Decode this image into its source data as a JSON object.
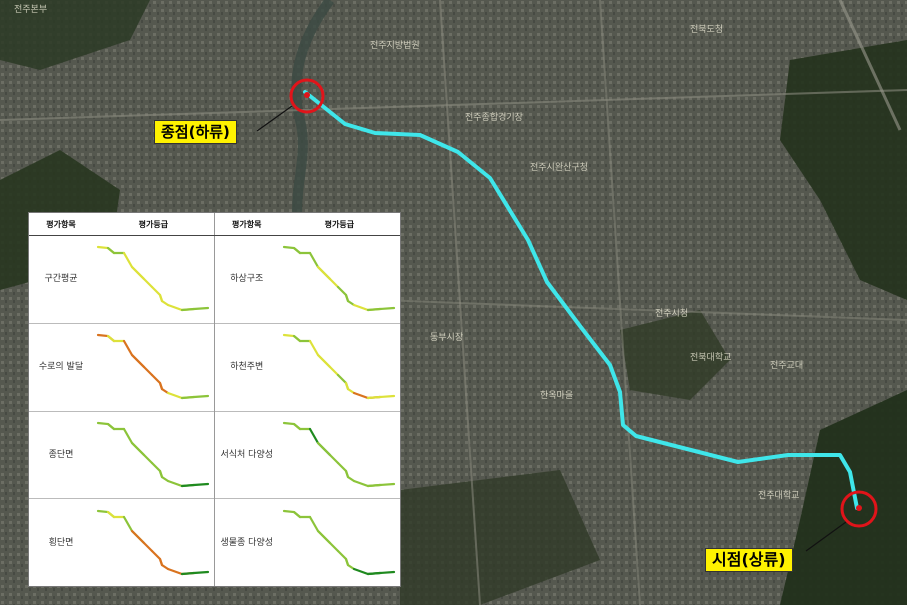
{
  "map": {
    "end_label": "종점(하류)",
    "start_label": "시점(상류)",
    "route_color": "#3fe6ea",
    "marker_color": "#e0141a",
    "places": [
      "전주본부",
      "전주지방법원",
      "전주종합경기장",
      "전주시청",
      "전북대학교",
      "전주교대",
      "전북도청",
      "전주시완산구청",
      "동부시장",
      "전주대학교",
      "한옥마을"
    ]
  },
  "panel": {
    "headers": [
      "평가항목",
      "평가등급",
      "평가항목",
      "평가등급"
    ],
    "rows": [
      {
        "left": {
          "label": "구간평균",
          "segments": [
            "yellow",
            "green",
            "yellow",
            "yellow",
            "yellow",
            "yellow",
            "yellow",
            "green"
          ]
        },
        "right": {
          "label": "하상구조",
          "segments": [
            "green",
            "green",
            "green",
            "yellow",
            "green",
            "green",
            "yellow",
            "green"
          ]
        }
      },
      {
        "left": {
          "label": "수로의 발달",
          "segments": [
            "orange",
            "yellow",
            "orange",
            "orange",
            "orange",
            "orange",
            "yellow",
            "green"
          ]
        },
        "right": {
          "label": "하천주변",
          "segments": [
            "yellow",
            "green",
            "yellow",
            "yellow",
            "green",
            "yellow",
            "orange",
            "yellow"
          ]
        }
      },
      {
        "left": {
          "label": "종단면",
          "segments": [
            "green",
            "green",
            "green",
            "green",
            "green",
            "green",
            "green",
            "darkgreen"
          ]
        },
        "right": {
          "label": "서식처 다양성",
          "segments": [
            "green",
            "green",
            "darkgreen",
            "green",
            "green",
            "green",
            "green",
            "green"
          ]
        }
      },
      {
        "left": {
          "label": "횡단면",
          "segments": [
            "green",
            "yellow",
            "green",
            "orange",
            "orange",
            "orange",
            "orange",
            "darkgreen"
          ]
        },
        "right": {
          "label": "생물종 다양성",
          "segments": [
            "green",
            "green",
            "green",
            "green",
            "green",
            "green",
            "darkgreen",
            "darkgreen"
          ]
        }
      }
    ],
    "colors": {
      "yellow": "#dde23a",
      "green": "#8cc43a",
      "orange": "#d9731f",
      "darkgreen": "#1f8a1f"
    }
  }
}
